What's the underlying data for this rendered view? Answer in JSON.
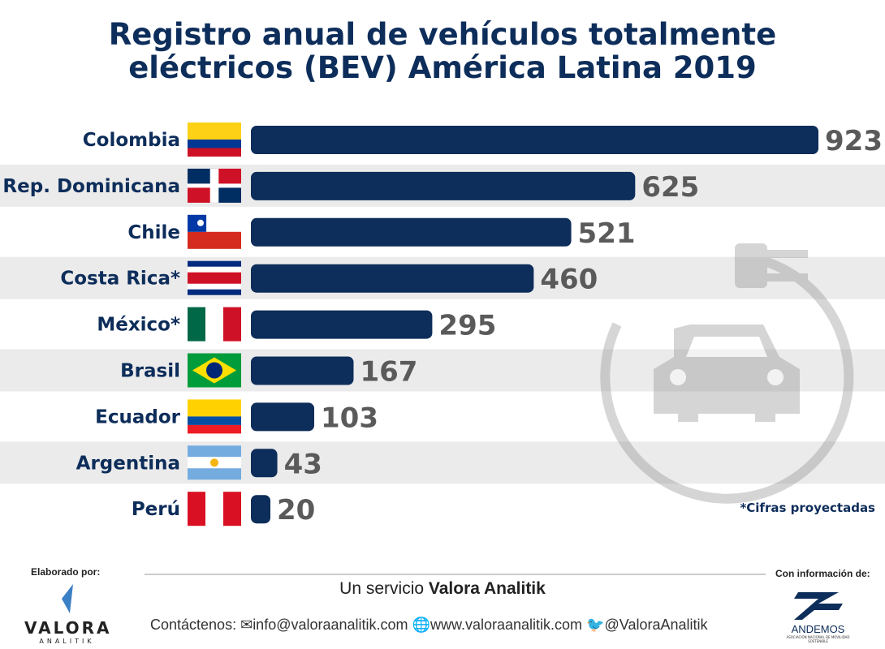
{
  "chart_data": {
    "type": "bar",
    "orientation": "horizontal",
    "title": [
      "Registro anual de vehículos totalmente",
      "eléctricos (BEV) América Latina 2019"
    ],
    "categories": [
      "Colombia",
      "Rep. Dominicana",
      "Chile",
      "Costa Rica*",
      "México*",
      "Brasil",
      "Ecuador",
      "Argentina",
      "Perú"
    ],
    "values": [
      923,
      625,
      521,
      460,
      295,
      167,
      103,
      43,
      20
    ],
    "bar_color": "#0d2d5a",
    "band_color": "#ebebeb",
    "value_color": "#5a5a5a",
    "note": "*Cifras proyectadas",
    "grid": false
  },
  "footer": {
    "made_by": "Elaborado por:",
    "brand": "VALORA",
    "brand_sub": "ANALITIK",
    "service_prefix": "Un servicio ",
    "service_name": "Valora Analitik",
    "contact_label": "Contáctenos:",
    "email": "info@valoraanalitik.com",
    "web": "www.valoraanalitik.com",
    "twitter": "@ValoraAnalitik",
    "source_label": "Con información de:",
    "source_name": "ANDEMOS",
    "source_sub": "ASOCIACIÓN NACIONAL DE MOVILIDAD SOSTENIBLE"
  }
}
